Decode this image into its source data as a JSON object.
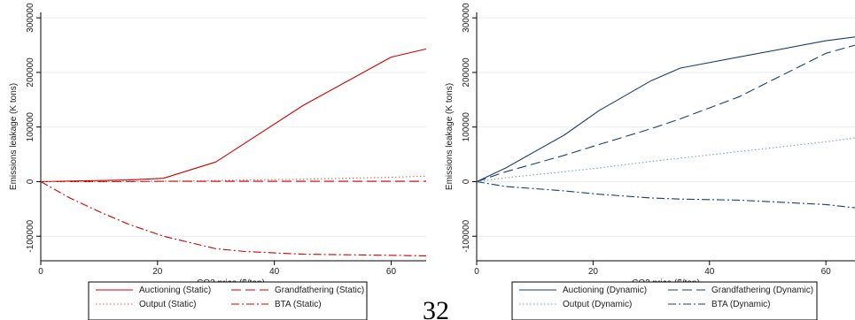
{
  "page_number": "32",
  "chart_data": [
    {
      "type": "line",
      "xlabel": "CO2 price ($/ton)",
      "ylabel": "Emissions leakage (K tons)",
      "xlim": [
        0,
        66
      ],
      "ylim": [
        -145000,
        310000
      ],
      "x_ticks": [
        0,
        20,
        40,
        60
      ],
      "y_ticks": [
        -100000,
        0,
        100000,
        200000,
        300000
      ],
      "grid": true,
      "legend_position": "bottom",
      "series": [
        {
          "name": "Auctioning (Static)",
          "color": "#cc0000",
          "style": "solid",
          "x": [
            0,
            5,
            15,
            21,
            30,
            45,
            60,
            66
          ],
          "y": [
            0,
            1000,
            3000,
            6000,
            36000,
            140000,
            228000,
            243000
          ]
        },
        {
          "name": "Grandfathering (Static)",
          "color": "#cc0000",
          "style": "longdash",
          "x": [
            0,
            5,
            15,
            21,
            30,
            45,
            60,
            66
          ],
          "y": [
            0,
            0,
            0,
            500,
            500,
            500,
            500,
            500
          ]
        },
        {
          "name": "Output (Static)",
          "color": "#e06666",
          "style": "dotted",
          "x": [
            0,
            5,
            15,
            21,
            30,
            45,
            60,
            66
          ],
          "y": [
            0,
            200,
            600,
            1000,
            2000,
            4500,
            8000,
            10000
          ]
        },
        {
          "name": "BTA (Static)",
          "color": "#cc0000",
          "style": "dashdot",
          "x": [
            0,
            5,
            10,
            15,
            21,
            30,
            35,
            45,
            60,
            66
          ],
          "y": [
            0,
            -30000,
            -55000,
            -78000,
            -100000,
            -123000,
            -128000,
            -133000,
            -135000,
            -136000
          ]
        }
      ]
    },
    {
      "type": "line",
      "xlabel": "CO2 price ($/ton)",
      "ylabel": "Emissions leakage (K tons)",
      "xlim": [
        0,
        65
      ],
      "ylim": [
        -145000,
        310000
      ],
      "x_ticks": [
        0,
        20,
        40,
        60
      ],
      "y_ticks": [
        -100000,
        0,
        100000,
        200000,
        300000
      ],
      "grid": true,
      "legend_position": "bottom",
      "series": [
        {
          "name": "Auctioning (Dynamic)",
          "color": "#1f3f66",
          "style": "solid",
          "x": [
            0,
            5,
            15,
            21,
            30,
            35,
            45,
            60,
            65
          ],
          "y": [
            0,
            25000,
            85000,
            130000,
            185000,
            208000,
            228000,
            258000,
            265000
          ]
        },
        {
          "name": "Grandfathering (Dynamic)",
          "color": "#1f3f66",
          "style": "longdash",
          "x": [
            0,
            5,
            15,
            21,
            30,
            35,
            45,
            60,
            65
          ],
          "y": [
            0,
            18000,
            48000,
            68000,
            97000,
            115000,
            155000,
            235000,
            250000
          ]
        },
        {
          "name": "Output (Dynamic)",
          "color": "#7f9fc9",
          "style": "dotted",
          "x": [
            0,
            5,
            15,
            21,
            30,
            35,
            45,
            60,
            65
          ],
          "y": [
            0,
            7000,
            18000,
            25000,
            37000,
            43000,
            55000,
            73000,
            80000
          ]
        },
        {
          "name": "BTA (Dynamic)",
          "color": "#1f3f66",
          "style": "dashdot",
          "x": [
            0,
            5,
            15,
            21,
            30,
            35,
            45,
            60,
            65
          ],
          "y": [
            0,
            -9000,
            -17000,
            -23000,
            -30000,
            -32000,
            -34000,
            -42000,
            -48000
          ]
        }
      ]
    }
  ]
}
